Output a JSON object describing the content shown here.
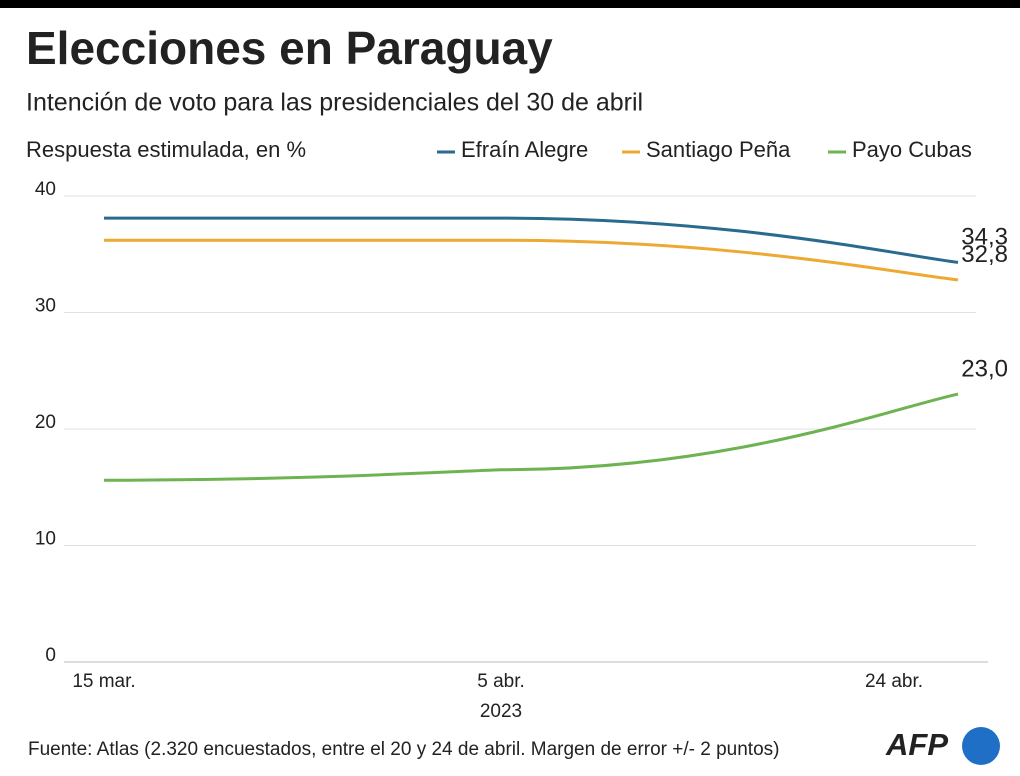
{
  "chart_data": {
    "type": "line",
    "title": "Elecciones en Paraguay",
    "subtitle": "Intención de voto para las presidenciales del 30 de abril",
    "y_label": "Respuesta estimulada, en %",
    "categories": [
      "15 mar.",
      "5 abr.",
      "24 abr."
    ],
    "x_year_label": "2023",
    "series": [
      {
        "name": "Efraín Alegre",
        "color": "#2b6a8f",
        "values": [
          38.1,
          38.1,
          34.3
        ],
        "value_labels": [
          null,
          null,
          "34,3"
        ]
      },
      {
        "name": "Santiago Peña",
        "color": "#eea932",
        "values": [
          36.2,
          36.2,
          32.8
        ],
        "value_labels": [
          null,
          null,
          "32,8"
        ]
      },
      {
        "name": "Payo Cubas",
        "color": "#6db352",
        "values": [
          15.6,
          16.5,
          23.0
        ],
        "value_labels": [
          null,
          null,
          "23,0"
        ]
      }
    ],
    "ylim": [
      0,
      40
    ],
    "yticks": [
      0,
      10,
      20,
      30,
      40
    ],
    "grid": true,
    "source": "Fuente: Atlas (2.320  encuestados, entre el 20 y 24 de abril. Margen de error +/- 2 puntos)",
    "logo": "AFP"
  }
}
